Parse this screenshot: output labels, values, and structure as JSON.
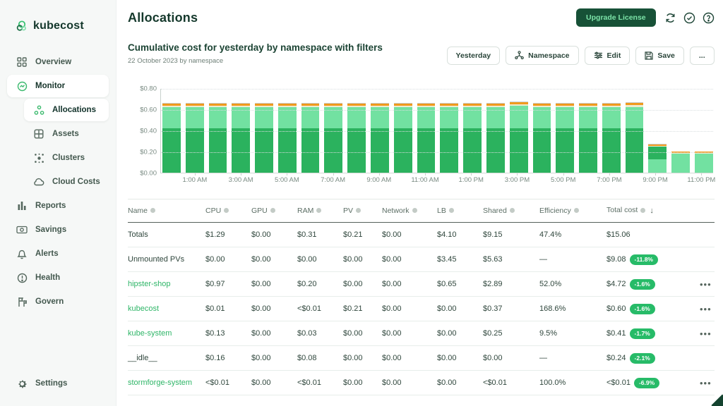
{
  "sidebar": {
    "logo_text": "kubecost",
    "items": [
      {
        "label": "Overview",
        "icon": "overview-icon",
        "active": false,
        "sub": false
      },
      {
        "label": "Monitor",
        "icon": "monitor-icon",
        "active": true,
        "sub": false
      },
      {
        "label": "Allocations",
        "icon": "allocations-icon",
        "active": true,
        "sub": true
      },
      {
        "label": "Assets",
        "icon": "assets-icon",
        "active": false,
        "sub": true
      },
      {
        "label": "Clusters",
        "icon": "clusters-icon",
        "active": false,
        "sub": true
      },
      {
        "label": "Cloud Costs",
        "icon": "cloud-costs-icon",
        "active": false,
        "sub": true
      },
      {
        "label": "Reports",
        "icon": "reports-icon",
        "active": false,
        "sub": false
      },
      {
        "label": "Savings",
        "icon": "savings-icon",
        "active": false,
        "sub": false
      },
      {
        "label": "Alerts",
        "icon": "alerts-icon",
        "active": false,
        "sub": false
      },
      {
        "label": "Health",
        "icon": "health-icon",
        "active": false,
        "sub": false
      },
      {
        "label": "Govern",
        "icon": "govern-icon",
        "active": false,
        "sub": false
      }
    ],
    "settings_label": "Settings"
  },
  "header": {
    "title": "Allocations",
    "upgrade_label": "Upgrade License",
    "icon_buttons": [
      "refresh-icon",
      "check-circle-icon",
      "help-icon"
    ]
  },
  "toolbar": {
    "subtitle": "Cumulative cost for yesterday by namespace with filters",
    "date_line": "22 October 2023 by namespace",
    "buttons": [
      {
        "label": "Yesterday",
        "icon": null
      },
      {
        "label": "Namespace",
        "icon": "namespace-icon"
      },
      {
        "label": "Edit",
        "icon": "edit-icon"
      },
      {
        "label": "Save",
        "icon": "save-icon"
      },
      {
        "label": "...",
        "icon": null
      }
    ]
  },
  "chart_data": {
    "type": "bar",
    "stacked": true,
    "title": "Cumulative cost for yesterday by namespace",
    "ylim": [
      0,
      0.8
    ],
    "ytick_labels": [
      "$0.00",
      "$0.20",
      "$0.40",
      "$0.60",
      "$0.80"
    ],
    "x_hour_labels": [
      "1:00 AM",
      "3:00 AM",
      "5:00 AM",
      "7:00 AM",
      "9:00 AM",
      "11:00 AM",
      "1:00 PM",
      "3:00 PM",
      "5:00 PM",
      "7:00 PM",
      "9:00 PM",
      "11:00 PM"
    ],
    "series_colors": {
      "green": "#2bb25e",
      "mint": "#72e1a1",
      "cream": "#edeacf",
      "orange": "#f09a1c",
      "gray": "#c9ced2"
    },
    "bars": [
      {
        "hour": "12 AM",
        "segments": [
          [
            "green",
            0.425
          ],
          [
            "mint",
            0.2
          ],
          [
            "cream",
            0.015
          ],
          [
            "orange",
            0.02
          ],
          [
            "gray",
            0.007
          ]
        ]
      },
      {
        "hour": "1 AM",
        "segments": [
          [
            "green",
            0.425
          ],
          [
            "mint",
            0.2
          ],
          [
            "cream",
            0.015
          ],
          [
            "orange",
            0.02
          ],
          [
            "gray",
            0.007
          ]
        ]
      },
      {
        "hour": "2 AM",
        "segments": [
          [
            "green",
            0.425
          ],
          [
            "mint",
            0.2
          ],
          [
            "cream",
            0.015
          ],
          [
            "orange",
            0.02
          ],
          [
            "gray",
            0.007
          ]
        ]
      },
      {
        "hour": "3 AM",
        "segments": [
          [
            "green",
            0.425
          ],
          [
            "mint",
            0.2
          ],
          [
            "cream",
            0.015
          ],
          [
            "orange",
            0.02
          ],
          [
            "gray",
            0.007
          ]
        ]
      },
      {
        "hour": "4 AM",
        "segments": [
          [
            "green",
            0.425
          ],
          [
            "mint",
            0.2
          ],
          [
            "cream",
            0.015
          ],
          [
            "orange",
            0.02
          ],
          [
            "gray",
            0.007
          ]
        ]
      },
      {
        "hour": "5 AM",
        "segments": [
          [
            "green",
            0.425
          ],
          [
            "mint",
            0.2
          ],
          [
            "cream",
            0.015
          ],
          [
            "orange",
            0.02
          ],
          [
            "gray",
            0.007
          ]
        ]
      },
      {
        "hour": "6 AM",
        "segments": [
          [
            "green",
            0.425
          ],
          [
            "mint",
            0.2
          ],
          [
            "cream",
            0.015
          ],
          [
            "orange",
            0.02
          ],
          [
            "gray",
            0.007
          ]
        ]
      },
      {
        "hour": "7 AM",
        "segments": [
          [
            "green",
            0.425
          ],
          [
            "mint",
            0.2
          ],
          [
            "cream",
            0.015
          ],
          [
            "orange",
            0.02
          ],
          [
            "gray",
            0.007
          ]
        ]
      },
      {
        "hour": "8 AM",
        "segments": [
          [
            "green",
            0.425
          ],
          [
            "mint",
            0.2
          ],
          [
            "cream",
            0.015
          ],
          [
            "orange",
            0.02
          ],
          [
            "gray",
            0.007
          ]
        ]
      },
      {
        "hour": "9 AM",
        "segments": [
          [
            "green",
            0.425
          ],
          [
            "mint",
            0.2
          ],
          [
            "cream",
            0.015
          ],
          [
            "orange",
            0.02
          ],
          [
            "gray",
            0.007
          ]
        ]
      },
      {
        "hour": "10 AM",
        "segments": [
          [
            "green",
            0.425
          ],
          [
            "mint",
            0.2
          ],
          [
            "cream",
            0.015
          ],
          [
            "orange",
            0.02
          ],
          [
            "gray",
            0.007
          ]
        ]
      },
      {
        "hour": "11 AM",
        "segments": [
          [
            "green",
            0.425
          ],
          [
            "mint",
            0.2
          ],
          [
            "cream",
            0.015
          ],
          [
            "orange",
            0.02
          ],
          [
            "gray",
            0.007
          ]
        ]
      },
      {
        "hour": "12 PM",
        "segments": [
          [
            "green",
            0.425
          ],
          [
            "mint",
            0.2
          ],
          [
            "cream",
            0.015
          ],
          [
            "orange",
            0.02
          ],
          [
            "gray",
            0.007
          ]
        ]
      },
      {
        "hour": "1 PM",
        "segments": [
          [
            "green",
            0.425
          ],
          [
            "mint",
            0.2
          ],
          [
            "cream",
            0.015
          ],
          [
            "orange",
            0.02
          ],
          [
            "gray",
            0.007
          ]
        ]
      },
      {
        "hour": "2 PM",
        "segments": [
          [
            "green",
            0.425
          ],
          [
            "mint",
            0.2
          ],
          [
            "cream",
            0.015
          ],
          [
            "orange",
            0.02
          ],
          [
            "gray",
            0.007
          ]
        ]
      },
      {
        "hour": "3 PM",
        "segments": [
          [
            "green",
            0.43
          ],
          [
            "mint",
            0.21
          ],
          [
            "cream",
            0.015
          ],
          [
            "orange",
            0.02
          ],
          [
            "gray",
            0.007
          ]
        ]
      },
      {
        "hour": "4 PM",
        "segments": [
          [
            "green",
            0.425
          ],
          [
            "mint",
            0.2
          ],
          [
            "cream",
            0.015
          ],
          [
            "orange",
            0.02
          ],
          [
            "gray",
            0.007
          ]
        ]
      },
      {
        "hour": "5 PM",
        "segments": [
          [
            "green",
            0.425
          ],
          [
            "mint",
            0.2
          ],
          [
            "cream",
            0.015
          ],
          [
            "orange",
            0.02
          ],
          [
            "gray",
            0.007
          ]
        ]
      },
      {
        "hour": "6 PM",
        "segments": [
          [
            "green",
            0.425
          ],
          [
            "mint",
            0.2
          ],
          [
            "cream",
            0.015
          ],
          [
            "orange",
            0.02
          ],
          [
            "gray",
            0.007
          ]
        ]
      },
      {
        "hour": "7 PM",
        "segments": [
          [
            "green",
            0.425
          ],
          [
            "mint",
            0.2
          ],
          [
            "cream",
            0.015
          ],
          [
            "orange",
            0.02
          ],
          [
            "gray",
            0.007
          ]
        ]
      },
      {
        "hour": "8 PM",
        "segments": [
          [
            "green",
            0.425
          ],
          [
            "mint",
            0.205
          ],
          [
            "cream",
            0.015
          ],
          [
            "orange",
            0.02
          ],
          [
            "gray",
            0.007
          ]
        ]
      },
      {
        "hour": "9 PM",
        "segments": [
          [
            "mint",
            0.135
          ],
          [
            "green",
            0.115
          ],
          [
            "cream",
            0.008
          ],
          [
            "orange",
            0.014
          ],
          [
            "gray",
            0.005
          ]
        ]
      },
      {
        "hour": "10 PM",
        "segments": [
          [
            "mint",
            0.185
          ],
          [
            "cream",
            0.006
          ],
          [
            "orange",
            0.013
          ],
          [
            "gray",
            0.005
          ]
        ]
      },
      {
        "hour": "11 PM",
        "segments": [
          [
            "mint",
            0.185
          ],
          [
            "cream",
            0.006
          ],
          [
            "orange",
            0.013
          ],
          [
            "gray",
            0.005
          ]
        ]
      }
    ]
  },
  "table": {
    "columns": [
      {
        "label": "Name",
        "info": true,
        "sort": false
      },
      {
        "label": "CPU",
        "info": true,
        "sort": false
      },
      {
        "label": "GPU",
        "info": true,
        "sort": false
      },
      {
        "label": "RAM",
        "info": true,
        "sort": false
      },
      {
        "label": "PV",
        "info": true,
        "sort": false
      },
      {
        "label": "Network",
        "info": true,
        "sort": false
      },
      {
        "label": "LB",
        "info": true,
        "sort": false
      },
      {
        "label": "Shared",
        "info": true,
        "sort": false
      },
      {
        "label": "Efficiency",
        "info": true,
        "sort": false
      },
      {
        "label": "Total cost",
        "info": true,
        "sort": true
      }
    ],
    "sort_arrow": "↓",
    "rows": [
      {
        "name": "Totals",
        "link": false,
        "cpu": "$1.29",
        "gpu": "$0.00",
        "ram": "$0.31",
        "pv": "$0.21",
        "network": "$0.00",
        "lb": "$4.10",
        "shared": "$9.15",
        "efficiency": "47.4%",
        "total": "$15.06",
        "badge": null,
        "menu": false
      },
      {
        "name": "Unmounted PVs",
        "link": false,
        "cpu": "$0.00",
        "gpu": "$0.00",
        "ram": "$0.00",
        "pv": "$0.00",
        "network": "$0.00",
        "lb": "$3.45",
        "shared": "$5.63",
        "efficiency": "—",
        "total": "$9.08",
        "badge": "-11.8%",
        "menu": false
      },
      {
        "name": "hipster-shop",
        "link": true,
        "cpu": "$0.97",
        "gpu": "$0.00",
        "ram": "$0.20",
        "pv": "$0.00",
        "network": "$0.00",
        "lb": "$0.65",
        "shared": "$2.89",
        "efficiency": "52.0%",
        "total": "$4.72",
        "badge": "-1.6%",
        "menu": true
      },
      {
        "name": "kubecost",
        "link": true,
        "cpu": "$0.01",
        "gpu": "$0.00",
        "ram": "<$0.01",
        "pv": "$0.21",
        "network": "$0.00",
        "lb": "$0.00",
        "shared": "$0.37",
        "efficiency": "168.6%",
        "total": "$0.60",
        "badge": "-1.6%",
        "menu": true
      },
      {
        "name": "kube-system",
        "link": true,
        "cpu": "$0.13",
        "gpu": "$0.00",
        "ram": "$0.03",
        "pv": "$0.00",
        "network": "$0.00",
        "lb": "$0.00",
        "shared": "$0.25",
        "efficiency": "9.5%",
        "total": "$0.41",
        "badge": "-1.7%",
        "menu": true
      },
      {
        "name": "__idle__",
        "link": false,
        "cpu": "$0.16",
        "gpu": "$0.00",
        "ram": "$0.08",
        "pv": "$0.00",
        "network": "$0.00",
        "lb": "$0.00",
        "shared": "$0.00",
        "efficiency": "—",
        "total": "$0.24",
        "badge": "-2.1%",
        "menu": false
      },
      {
        "name": "stormforge-system",
        "link": true,
        "cpu": "<$0.01",
        "gpu": "$0.00",
        "ram": "<$0.01",
        "pv": "$0.00",
        "network": "$0.00",
        "lb": "$0.00",
        "shared": "<$0.01",
        "efficiency": "100.0%",
        "total": "<$0.01",
        "badge": "-6.9%",
        "menu": true
      }
    ]
  }
}
